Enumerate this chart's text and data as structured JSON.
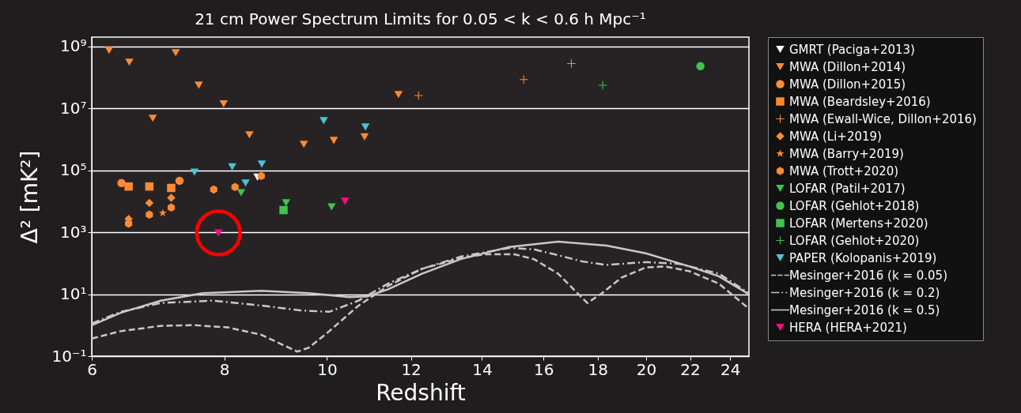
{
  "chart_data": {
    "type": "scatter",
    "title": "21 cm Power Spectrum Limits for 0.05 < k < 0.6 h Mpc⁻¹",
    "xlabel": "Redshift",
    "ylabel": "Δ² [mK²]",
    "log": "xy",
    "grid": "y",
    "legend": "right",
    "xlim": [
      6,
      25
    ],
    "xticks": [
      6,
      8,
      10,
      12,
      14,
      16,
      18,
      20,
      22,
      24
    ],
    "ylim": [
      0.1,
      2000000000
    ],
    "yticks": [
      {
        "value": 0.1,
        "label": "10⁻¹"
      },
      {
        "value": 10,
        "label": "10¹"
      },
      {
        "value": 1000,
        "label": "10³"
      },
      {
        "value": 100000,
        "label": "10⁵"
      },
      {
        "value": 10000000,
        "label": "10⁷"
      },
      {
        "value": 1000000000,
        "label": "10⁹"
      }
    ],
    "series": [
      {
        "name": "GMRT (Paciga+2013)",
        "marker": "triangle",
        "color": "#ffffff",
        "x": [
          8.6
        ],
        "values": [
          60000
        ]
      },
      {
        "name": "MWA (Dillon+2014)",
        "marker": "triangle",
        "color": "#ff8a35",
        "x": [
          6.23,
          6.51,
          7.2,
          7.57,
          7.99,
          6.85,
          8.45,
          9.51,
          10.15,
          10.85,
          11.68
        ],
        "values": [
          750000000,
          310000000,
          630000000,
          56000000,
          14000000,
          4800000,
          1400000,
          690000,
          920000,
          1200000,
          28000000
        ]
      },
      {
        "name": "MWA (Dillon+2015)",
        "marker": "circle",
        "color": "#ff8a35",
        "x": [
          6.4,
          7.26
        ],
        "values": [
          39000,
          46000
        ]
      },
      {
        "name": "MWA (Beardsley+2016)",
        "marker": "square",
        "color": "#ff8a35",
        "x": [
          6.5,
          6.8,
          7.13
        ],
        "values": [
          30000,
          30000,
          27000
        ]
      },
      {
        "name": "MWA (Ewall-Wice, Dillon+2016)",
        "marker": "cross",
        "color": "#ff8a35",
        "x": [
          12.2,
          15.33,
          17.0
        ],
        "values": [
          26000000,
          85000000,
          280000000
        ]
      },
      {
        "name": "MWA (Li+2019)",
        "marker": "diamond",
        "color": "#ff8a35",
        "x": [
          6.5,
          6.8,
          7.13
        ],
        "values": [
          2700,
          8900,
          13000
        ]
      },
      {
        "name": "MWA (Barry+2019)",
        "marker": "star",
        "color": "#ff8a35",
        "x": [
          7.0
        ],
        "values": [
          4200
        ]
      },
      {
        "name": "MWA (Trott+2020)",
        "color": "#ff8a35",
        "x": [
          6.5,
          6.8,
          7.13,
          7.82,
          8.19,
          8.67
        ],
        "values": [
          1900,
          3700,
          6300,
          24000,
          29000,
          66000
        ]
      },
      {
        "name": "LOFAR (Patil+2017)",
        "marker": "triangle",
        "color": "#3ec44c",
        "x": [
          8.3,
          9.15,
          10.1
        ],
        "values": [
          19000,
          8900,
          6600
        ]
      },
      {
        "name": "LOFAR (Gehlot+2018)",
        "marker": "circle",
        "color": "#3ec44c",
        "x": [
          22.5
        ],
        "values": [
          230000000
        ]
      },
      {
        "name": "LOFAR (Mertens+2020)",
        "marker": "square",
        "color": "#3ec44c",
        "x": [
          9.1
        ],
        "values": [
          5200
        ]
      },
      {
        "name": "LOFAR (Gehlot+2020)",
        "marker": "cross",
        "color": "#3ec44c",
        "x": [
          18.2
        ],
        "values": [
          56000000
        ]
      },
      {
        "name": "PAPER (Kolopanis+2019)",
        "marker": "triangle",
        "color": "#4cc3d4",
        "x": [
          7.5,
          8.14,
          8.38,
          8.68,
          9.93,
          10.87
        ],
        "values": [
          87000,
          130000,
          39000,
          160000,
          4000000,
          2500000
        ]
      },
      {
        "name": "Mesinger+2016 (k = 0.05)",
        "type": "line",
        "line_style": "dashed",
        "color": "#c8c8c8",
        "x": [
          6,
          6.39,
          6.97,
          7.49,
          8.06,
          8.67,
          9.14,
          9.38,
          9.62,
          10.05,
          10.71,
          11.42,
          12.29,
          13.37,
          14.09,
          15.02,
          15.67,
          16.52,
          17.23,
          17.6,
          18.17,
          18.95,
          19.98,
          20.84,
          21.97,
          23.42,
          25
        ],
        "values": [
          0.37,
          0.64,
          0.95,
          1.0,
          0.85,
          0.49,
          0.21,
          0.14,
          0.19,
          0.64,
          4.3,
          18.5,
          66,
          146,
          195,
          195,
          136,
          46,
          10.7,
          5.2,
          10.7,
          34,
          73,
          79,
          55,
          22,
          3.4
        ]
      },
      {
        "name": "Mesinger+2016 (k = 0.2)",
        "type": "line",
        "line_style": "dashdot",
        "color": "#c8c8c8",
        "x": [
          6,
          6.39,
          6.97,
          7.81,
          8.67,
          9.43,
          10.05,
          10.71,
          11.42,
          12.29,
          13.37,
          14.86,
          15.67,
          16.52,
          17.41,
          18.35,
          19.98,
          21.5,
          23.42,
          25
        ],
        "values": [
          1.13,
          2.7,
          5.2,
          6.2,
          4.3,
          3.0,
          2.7,
          6.2,
          22,
          66,
          163,
          313,
          281,
          182,
          114,
          88,
          109,
          95,
          46,
          10.7
        ]
      },
      {
        "name": "Mesinger+2016 (k = 0.5)",
        "type": "line",
        "line_style": "solid",
        "color": "#c8c8c8",
        "x": [
          6,
          6.39,
          6.97,
          7.64,
          8.67,
          9.62,
          10.49,
          10.93,
          11.42,
          12.29,
          13.37,
          14.86,
          16.52,
          18.35,
          19.98,
          21.97,
          23.42,
          25
        ],
        "values": [
          1.0,
          2.5,
          6.2,
          10.8,
          12.9,
          10.8,
          8.0,
          8.6,
          14.4,
          46,
          136,
          337,
          500,
          372,
          210,
          79,
          38,
          10
        ]
      },
      {
        "name": "HERA (HERA+2021)",
        "marker": "triangle",
        "color": "#ff0a8c",
        "x": [
          7.9,
          10.4
        ],
        "values": [
          950,
          10000
        ]
      }
    ]
  }
}
